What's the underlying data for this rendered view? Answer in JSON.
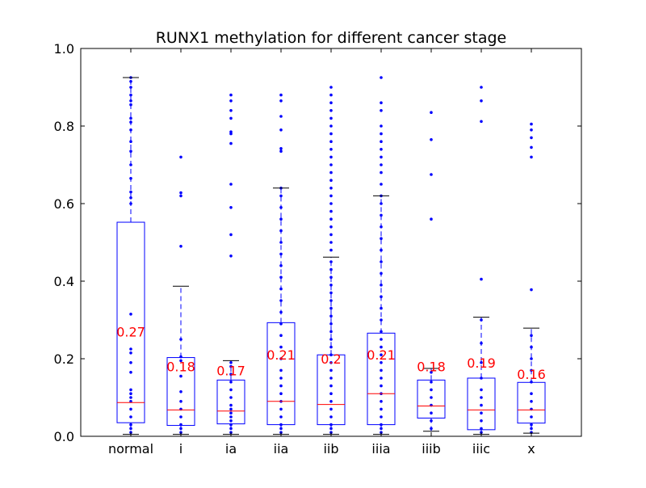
{
  "chart_data": {
    "type": "box",
    "title": "RUNX1 methylation for different cancer stage",
    "xlabel": "",
    "ylabel": "",
    "ylim": [
      0,
      1.0
    ],
    "yticks": [
      "0.0",
      "0.2",
      "0.4",
      "0.6",
      "0.8",
      "1.0"
    ],
    "grid": false,
    "colors": {
      "box": "#0000ff",
      "median": "#ff0000",
      "cap": "#000000",
      "label": "#ff0000",
      "axis": "#000000"
    },
    "categories": [
      "normal",
      "i",
      "ia",
      "iia",
      "iib",
      "iiia",
      "iiib",
      "iiic",
      "x"
    ],
    "boxes": [
      {
        "category": "normal",
        "q1": 0.035,
        "median": 0.087,
        "q3": 0.552,
        "whisker_low": 0.005,
        "whisker_high": 0.925,
        "mean_label": "0.27",
        "mean": 0.27,
        "points": [
          0.01,
          0.02,
          0.03,
          0.05,
          0.07,
          0.09,
          0.1,
          0.11,
          0.12,
          0.165,
          0.19,
          0.215,
          0.225,
          0.315,
          0.6,
          0.615,
          0.63,
          0.665,
          0.7,
          0.735,
          0.76,
          0.79,
          0.81,
          0.82,
          0.855,
          0.865,
          0.88,
          0.9,
          0.915,
          0.925
        ]
      },
      {
        "category": "i",
        "q1": 0.028,
        "median": 0.068,
        "q3": 0.203,
        "whisker_low": 0.005,
        "whisker_high": 0.387,
        "mean_label": "0.18",
        "mean": 0.18,
        "points": [
          0.01,
          0.02,
          0.03,
          0.05,
          0.07,
          0.09,
          0.115,
          0.155,
          0.195,
          0.205,
          0.25,
          0.49,
          0.62,
          0.628,
          0.72
        ]
      },
      {
        "category": "ia",
        "q1": 0.032,
        "median": 0.065,
        "q3": 0.145,
        "whisker_low": 0.005,
        "whisker_high": 0.195,
        "mean_label": "0.17",
        "mean": 0.17,
        "points": [
          0.01,
          0.02,
          0.03,
          0.04,
          0.05,
          0.06,
          0.07,
          0.08,
          0.1,
          0.12,
          0.14,
          0.16,
          0.18,
          0.19,
          0.465,
          0.52,
          0.59,
          0.65,
          0.755,
          0.78,
          0.785,
          0.82,
          0.84,
          0.865,
          0.88
        ]
      },
      {
        "category": "iia",
        "q1": 0.03,
        "median": 0.09,
        "q3": 0.293,
        "whisker_low": 0.005,
        "whisker_high": 0.64,
        "mean_label": "0.21",
        "mean": 0.21,
        "points": [
          0.01,
          0.02,
          0.03,
          0.05,
          0.07,
          0.09,
          0.11,
          0.13,
          0.15,
          0.17,
          0.2,
          0.23,
          0.26,
          0.29,
          0.32,
          0.35,
          0.38,
          0.41,
          0.44,
          0.47,
          0.5,
          0.53,
          0.56,
          0.59,
          0.62,
          0.64,
          0.735,
          0.742,
          0.79,
          0.825,
          0.865,
          0.88
        ]
      },
      {
        "category": "iib",
        "q1": 0.03,
        "median": 0.082,
        "q3": 0.21,
        "whisker_low": 0.005,
        "whisker_high": 0.462,
        "mean_label": "0.2",
        "mean": 0.2,
        "points": [
          0.01,
          0.02,
          0.03,
          0.05,
          0.07,
          0.09,
          0.11,
          0.13,
          0.15,
          0.17,
          0.19,
          0.21,
          0.23,
          0.25,
          0.27,
          0.29,
          0.31,
          0.33,
          0.35,
          0.37,
          0.39,
          0.41,
          0.43,
          0.45,
          0.48,
          0.5,
          0.52,
          0.54,
          0.56,
          0.58,
          0.6,
          0.62,
          0.64,
          0.66,
          0.68,
          0.7,
          0.72,
          0.74,
          0.76,
          0.78,
          0.8,
          0.82,
          0.84,
          0.86,
          0.88,
          0.9
        ]
      },
      {
        "category": "iiia",
        "q1": 0.03,
        "median": 0.11,
        "q3": 0.266,
        "whisker_low": 0.005,
        "whisker_high": 0.62,
        "mean_label": "0.21",
        "mean": 0.21,
        "points": [
          0.01,
          0.02,
          0.03,
          0.05,
          0.07,
          0.09,
          0.11,
          0.13,
          0.15,
          0.17,
          0.19,
          0.21,
          0.23,
          0.25,
          0.27,
          0.3,
          0.33,
          0.36,
          0.39,
          0.42,
          0.45,
          0.48,
          0.51,
          0.54,
          0.57,
          0.6,
          0.62,
          0.65,
          0.68,
          0.7,
          0.72,
          0.74,
          0.76,
          0.78,
          0.8,
          0.84,
          0.86,
          0.925
        ]
      },
      {
        "category": "iiib",
        "q1": 0.047,
        "median": 0.078,
        "q3": 0.145,
        "whisker_low": 0.013,
        "whisker_high": 0.175,
        "mean_label": "0.18",
        "mean": 0.18,
        "points": [
          0.02,
          0.04,
          0.06,
          0.08,
          0.1,
          0.12,
          0.14,
          0.165,
          0.56,
          0.675,
          0.765,
          0.835
        ]
      },
      {
        "category": "iiic",
        "q1": 0.017,
        "median": 0.068,
        "q3": 0.15,
        "whisker_low": 0.005,
        "whisker_high": 0.307,
        "mean_label": "0.19",
        "mean": 0.19,
        "points": [
          0.01,
          0.02,
          0.04,
          0.06,
          0.08,
          0.1,
          0.12,
          0.15,
          0.19,
          0.24,
          0.3,
          0.405,
          0.812,
          0.865,
          0.9
        ]
      },
      {
        "category": "x",
        "q1": 0.034,
        "median": 0.068,
        "q3": 0.139,
        "whisker_low": 0.008,
        "whisker_high": 0.279,
        "mean_label": "0.16",
        "mean": 0.16,
        "points": [
          0.01,
          0.02,
          0.03,
          0.05,
          0.07,
          0.09,
          0.11,
          0.14,
          0.17,
          0.2,
          0.23,
          0.26,
          0.378,
          0.72,
          0.745,
          0.77,
          0.79,
          0.805
        ]
      }
    ]
  }
}
